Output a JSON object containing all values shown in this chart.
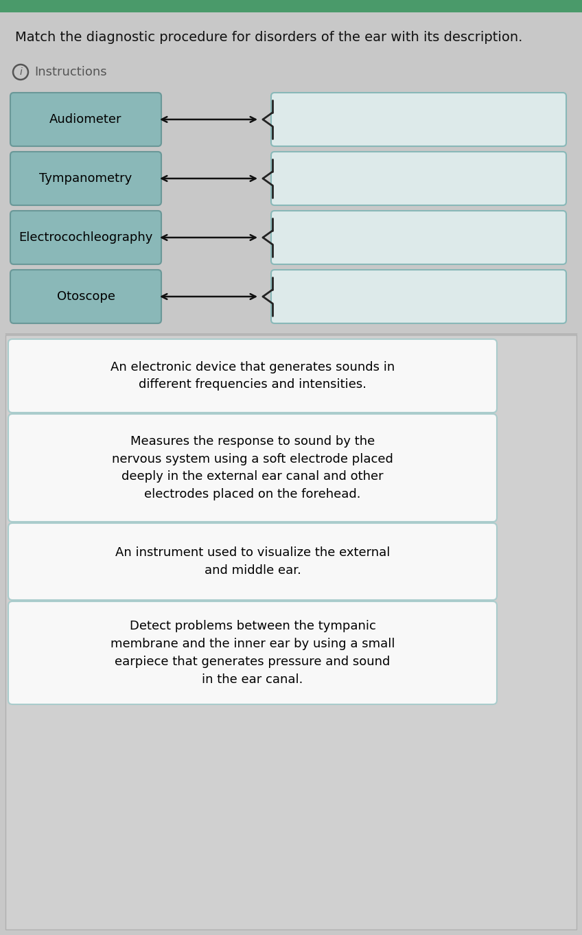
{
  "title": "Match the diagnostic procedure for disorders of the ear with its description.",
  "instructions_text": "Instructions",
  "background_color": "#c8c8c8",
  "top_bar_color": "#4a9a6a",
  "panel_bg": "#c8c8c8",
  "left_box_color": "#8ab8b8",
  "left_box_edge": "#6a9898",
  "right_box_color": "#ddeaea",
  "right_box_edge": "#88b8b8",
  "desc_panel_bg": "#d0d0d0",
  "desc_box_color": "#f8f8f8",
  "desc_box_edge": "#aacccc",
  "left_labels": [
    "Audiometer",
    "Tympanometry",
    "Electrocochleography",
    "Otoscope"
  ],
  "descriptions": [
    "An electronic device that generates sounds in\ndifferent frequencies and intensities.",
    "Measures the response to sound by the\nnervous system using a soft electrode placed\ndeeply in the external ear canal and other\nelectrodes placed on the forehead.",
    "An instrument used to visualize the external\nand middle ear.",
    "Detect problems between the tympanic\nmembrane and the inner ear by using a small\nearpiece that generates pressure and sound\nin the ear canal."
  ],
  "title_fontsize": 14,
  "label_fontsize": 13,
  "desc_fontsize": 13,
  "instr_fontsize": 13,
  "arrow_color": "#111111",
  "brace_color": "#222222",
  "text_color": "#222222",
  "title_color": "#111111",
  "instr_color": "#555555",
  "circle_color": "#555555"
}
